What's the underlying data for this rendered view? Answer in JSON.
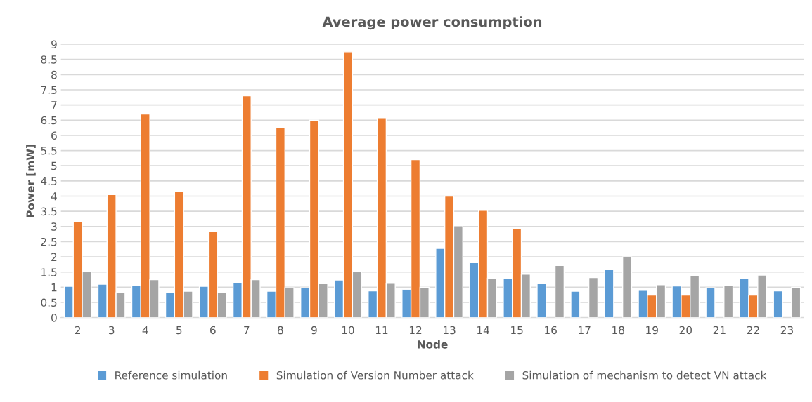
{
  "chart_data": {
    "type": "bar",
    "title": "Average power consumption",
    "xlabel": "Node",
    "ylabel": "Power [mW]",
    "categories": [
      "2",
      "3",
      "4",
      "5",
      "6",
      "7",
      "8",
      "9",
      "10",
      "11",
      "12",
      "13",
      "14",
      "15",
      "16",
      "17",
      "18",
      "19",
      "20",
      "21",
      "22",
      "23"
    ],
    "series": [
      {
        "name": "Reference simulation",
        "color": "#5b9bd5",
        "values": [
          1.03,
          1.1,
          1.06,
          0.82,
          1.03,
          1.16,
          0.87,
          0.98,
          1.24,
          0.88,
          0.92,
          2.28,
          1.81,
          1.28,
          1.12,
          0.87,
          1.58,
          0.9,
          1.04,
          0.98,
          1.3,
          0.88
        ]
      },
      {
        "name": "Simulation of Version Number attack",
        "color": "#ed7d31",
        "values": [
          3.17,
          4.05,
          6.7,
          4.15,
          2.83,
          7.3,
          6.27,
          6.5,
          8.75,
          6.58,
          5.2,
          4.0,
          3.53,
          2.92,
          null,
          null,
          null,
          0.74,
          0.74,
          null,
          0.74,
          null
        ]
      },
      {
        "name": "Simulation of mechanism to detect VN attack",
        "color": "#a5a5a5",
        "values": [
          1.53,
          0.82,
          1.25,
          0.87,
          0.84,
          1.25,
          0.98,
          1.12,
          1.51,
          1.13,
          1.0,
          3.02,
          1.3,
          1.43,
          1.72,
          1.32,
          2.0,
          1.08,
          1.38,
          1.06,
          1.4,
          1.0
        ]
      }
    ],
    "ylim": [
      0,
      9
    ],
    "yticks": [
      0,
      0.5,
      1,
      1.5,
      2,
      2.5,
      3,
      3.5,
      4,
      4.5,
      5,
      5.5,
      6,
      6.5,
      7,
      7.5,
      8,
      8.5,
      9
    ],
    "grid": "y",
    "legend": "bottom"
  }
}
